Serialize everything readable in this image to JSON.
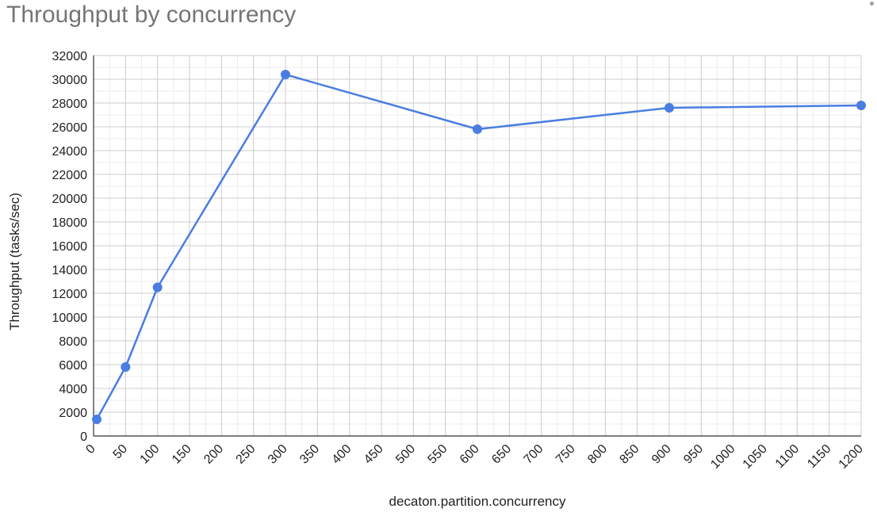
{
  "chart_data": {
    "type": "line",
    "title": "Throughput by concurrency",
    "xlabel": "decaton.partition.concurrency",
    "ylabel": "Throughput (tasks/sec)",
    "xlim": [
      0,
      1200
    ],
    "ylim": [
      0,
      32000
    ],
    "x_ticks": [
      0,
      50,
      100,
      150,
      200,
      250,
      300,
      350,
      400,
      450,
      500,
      550,
      600,
      650,
      700,
      750,
      800,
      850,
      900,
      950,
      1000,
      1050,
      1100,
      1150,
      1200
    ],
    "y_ticks": [
      0,
      2000,
      4000,
      6000,
      8000,
      10000,
      12000,
      14000,
      16000,
      18000,
      20000,
      22000,
      24000,
      26000,
      28000,
      30000,
      32000
    ],
    "grid": true,
    "legend": "none",
    "series": [
      {
        "color": "#4a7de2",
        "x": [
          5,
          50,
          100,
          300,
          600,
          900,
          1200
        ],
        "y": [
          1400,
          5800,
          12500,
          30400,
          25800,
          27600,
          27800
        ]
      }
    ]
  }
}
